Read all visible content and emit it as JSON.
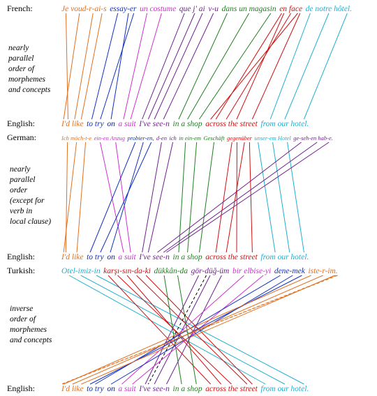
{
  "panels": [
    {
      "label": "French:",
      "tokens": [
        {
          "text": "Je voud-r-ai-s",
          "color": "#e07020"
        },
        {
          "text": "essay-er",
          "color": "#1030c0"
        },
        {
          "text": "un costume",
          "color": "#d030d0"
        },
        {
          "text": "que j' ai",
          "color": "#702090"
        },
        {
          "text": "v-u",
          "color": "#702090"
        },
        {
          "text": "dans un magasin",
          "color": "#208020"
        },
        {
          "text": "en face",
          "color": "#d01010"
        },
        {
          "text": "de notre hôtel.",
          "color": "#20b0d0"
        }
      ],
      "note": [
        "nearly",
        "parallel",
        "order of",
        "morphemes",
        "and concepts"
      ],
      "target_label": "English:",
      "target_tokens": [
        {
          "text": "I'd like",
          "color": "#e07020"
        },
        {
          "text": "to try",
          "color": "#1030c0"
        },
        {
          "text": "on",
          "color": "#102080"
        },
        {
          "text": "a suit",
          "color": "#d030d0"
        },
        {
          "text": "I've see-n",
          "color": "#702090"
        },
        {
          "text": "in a shop",
          "color": "#208020"
        },
        {
          "text": "across the street",
          "color": "#d01010"
        },
        {
          "text": "from our hotel.",
          "color": "#20b0d0"
        }
      ]
    },
    {
      "label": "German:",
      "tokens": [
        {
          "text": "Ich möch-t-e",
          "color": "#e07020"
        },
        {
          "text": "ein-en Anzug",
          "color": "#d030d0"
        },
        {
          "text": "probier-en,",
          "color": "#1030c0"
        },
        {
          "text": "d-en",
          "color": "#702090"
        },
        {
          "text": "ich",
          "color": "#702090"
        },
        {
          "text": "in ein-em",
          "color": "#208020"
        },
        {
          "text": "Geschäft",
          "color": "#208020"
        },
        {
          "text": "gegenüber",
          "color": "#d01010"
        },
        {
          "text": "unser-em Hotel",
          "color": "#20b0d0"
        },
        {
          "text": "ge-seh-en hab-e.",
          "color": "#702090"
        }
      ],
      "note": [
        "nearly",
        "parallel",
        "order",
        "(except for",
        "verb in",
        "local clause)"
      ],
      "target_label": "English:",
      "target_tokens": [
        {
          "text": "I'd like",
          "color": "#e07020"
        },
        {
          "text": "to try",
          "color": "#1030c0"
        },
        {
          "text": "on",
          "color": "#102080"
        },
        {
          "text": "a suit",
          "color": "#d030d0"
        },
        {
          "text": "I've see-n",
          "color": "#702090"
        },
        {
          "text": "in a shop",
          "color": "#208020"
        },
        {
          "text": "across the street",
          "color": "#d01010"
        },
        {
          "text": "from our hotel.",
          "color": "#20b0d0"
        }
      ]
    },
    {
      "label": "Turkish:",
      "tokens": [
        {
          "text": "Otel-imiz-in",
          "color": "#20b0d0"
        },
        {
          "text": "karşı-sın-da-ki",
          "color": "#d01010"
        },
        {
          "text": "dükkân-da",
          "color": "#208020"
        },
        {
          "text": "gör-düğ-üm",
          "color": "#702090"
        },
        {
          "text": "bir elbise-yi",
          "color": "#d030d0"
        },
        {
          "text": "dene-mek",
          "color": "#1030c0"
        },
        {
          "text": "iste-r-im.",
          "color": "#e07020"
        }
      ],
      "note": [
        "inverse",
        "order of",
        "morphemes",
        "and concepts"
      ],
      "target_label": "English:",
      "target_tokens": [
        {
          "text": "I'd like",
          "color": "#e07020"
        },
        {
          "text": "to try",
          "color": "#1030c0"
        },
        {
          "text": "on",
          "color": "#102080"
        },
        {
          "text": "a suit",
          "color": "#d030d0"
        },
        {
          "text": "I've see-n",
          "color": "#702090"
        },
        {
          "text": "in a shop",
          "color": "#208020"
        },
        {
          "text": "across the street",
          "color": "#d01010"
        },
        {
          "text": "from our hotel.",
          "color": "#20b0d0"
        }
      ]
    }
  ]
}
